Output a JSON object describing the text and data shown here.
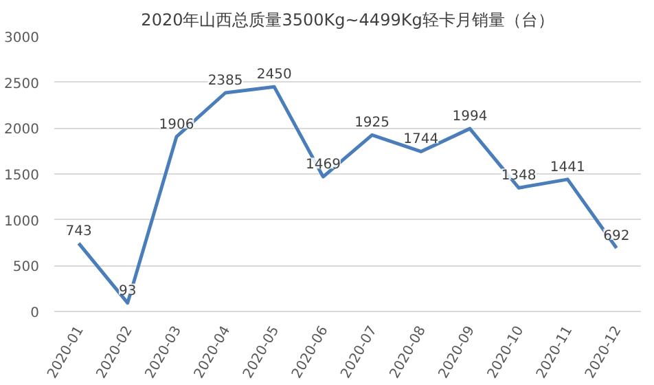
{
  "chart_data": {
    "type": "line",
    "title": "2020年山西总质量3500Kg~4499Kg轻卡月销量（台）",
    "categories": [
      "2020-01",
      "2020-02",
      "2020-03",
      "2020-04",
      "2020-05",
      "2020-06",
      "2020-07",
      "2020-08",
      "2020-09",
      "2020-10",
      "2020-11",
      "2020-12"
    ],
    "series": [
      {
        "color": "#4a7ebb",
        "values": [
          743,
          93,
          1906,
          2385,
          2450,
          1469,
          1925,
          1744,
          1994,
          1348,
          1441,
          692
        ]
      }
    ],
    "ylim": [
      0,
      3000
    ],
    "yticks": [
      0,
      500,
      1000,
      1500,
      2000,
      2500,
      3000
    ],
    "grid": "y",
    "data_labels": true,
    "marker": "none",
    "line_style": "solid"
  }
}
